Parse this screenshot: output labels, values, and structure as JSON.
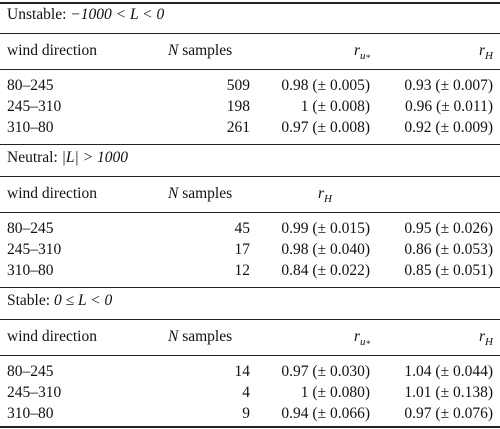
{
  "sections": [
    {
      "title_prefix": "Unstable: ",
      "title_math": "−1000 < L < 0",
      "headers": {
        "c1": "wind direction",
        "c2_var": "N",
        "c2_text": " samples",
        "c3_var": "r",
        "c3_sub": "u",
        "c3_subsub": "*",
        "c4_var": "r",
        "c4_sub": "H"
      },
      "rows": [
        {
          "dir": "80–245",
          "n": "509",
          "ru": "0.98 (± 0.005)",
          "rh": "0.93 (± 0.007)"
        },
        {
          "dir": "245–310",
          "n": "198",
          "ru": "1 (± 0.008)",
          "rh": "0.96 (± 0.011)"
        },
        {
          "dir": "310–80",
          "n": "261",
          "ru": "0.97 (± 0.008)",
          "rh": "0.92 (± 0.009)"
        }
      ]
    },
    {
      "title_prefix": "Neutral: ",
      "title_math": "|L| > 1000",
      "headers": {
        "c1": "wind direction",
        "c2_var": "N",
        "c2_text": " samples",
        "c3_var": "r",
        "c3_sub": "H"
      },
      "rows": [
        {
          "dir": "80–245",
          "n": "45",
          "ru": "0.99 (± 0.015)",
          "rh": "0.95 (± 0.026)"
        },
        {
          "dir": "245–310",
          "n": "17",
          "ru": "0.98 (± 0.040)",
          "rh": "0.86 (± 0.053)"
        },
        {
          "dir": "310–80",
          "n": "12",
          "ru": "0.84 (± 0.022)",
          "rh": "0.85 (± 0.051)"
        }
      ]
    },
    {
      "title_prefix": "Stable: ",
      "title_math": "0 ≤ L < 0",
      "headers": {
        "c1": "wind direction",
        "c2_var": "N",
        "c2_text": " samples",
        "c3_var": "r",
        "c3_sub": "u",
        "c3_subsub": "*",
        "c4_var": "r",
        "c4_sub": "H"
      },
      "rows": [
        {
          "dir": "80–245",
          "n": "14",
          "ru": "0.97 (± 0.030)",
          "rh": "1.04 (± 0.044)"
        },
        {
          "dir": "245–310",
          "n": "4",
          "ru": "1 (± 0.080)",
          "rh": "1.01 (± 0.138)"
        },
        {
          "dir": "310–80",
          "n": "9",
          "ru": "0.94 (± 0.066)",
          "rh": "0.97 (± 0.076)"
        }
      ]
    }
  ]
}
